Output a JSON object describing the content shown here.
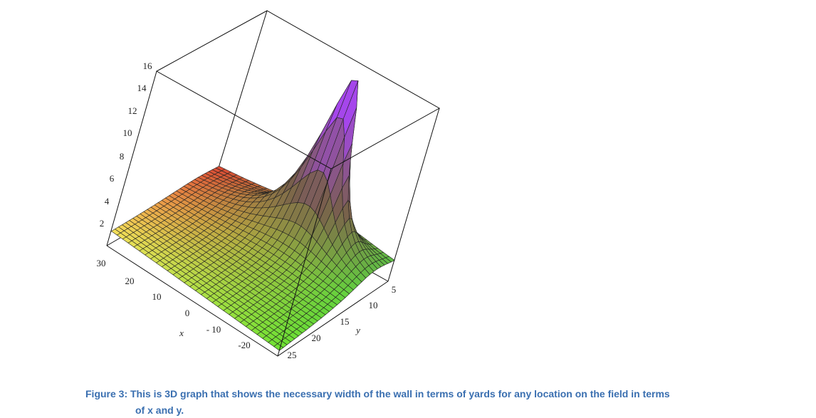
{
  "figure": {
    "z_axis_ticks": [
      "2",
      "4",
      "6",
      "8",
      "10",
      "12",
      "14",
      "16"
    ],
    "x_axis_label": "x",
    "x_axis_ticks": [
      "30",
      "20",
      "10",
      "0",
      "- 10",
      "-20"
    ],
    "y_axis_label": "y",
    "y_axis_ticks": [
      "5",
      "10",
      "15",
      "20",
      "25"
    ],
    "caption_line_1": "Figure 3: This is 3D graph that shows the necessary width of the wall in terms of yards for any location on the field in terms",
    "caption_line_2": "of x and y."
  }
}
